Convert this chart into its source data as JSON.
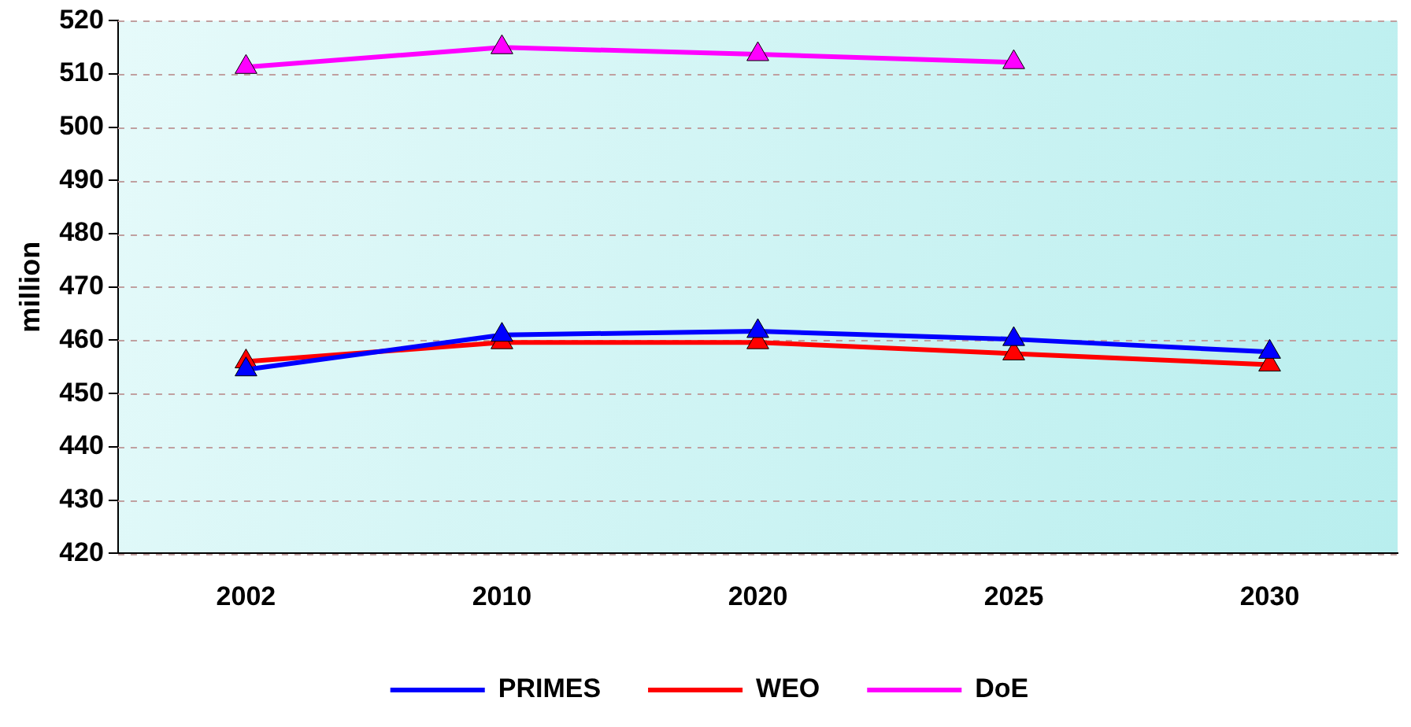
{
  "chart_data": {
    "type": "line",
    "ylabel": "million",
    "categories": [
      "2002",
      "2010",
      "2020",
      "2025",
      "2030"
    ],
    "series": [
      {
        "name": "PRIMES",
        "color": "#0000ff",
        "values": [
          454.5,
          461,
          461.7,
          460.2,
          457.8
        ]
      },
      {
        "name": "WEO",
        "color": "#ff0000",
        "values": [
          456,
          459.6,
          459.6,
          457.5,
          455.4
        ]
      },
      {
        "name": "DoE",
        "color": "#ff00ff",
        "values": [
          511.3,
          515,
          513.7,
          512.2,
          null
        ]
      }
    ],
    "ylim": [
      420,
      520
    ],
    "yticks": [
      420,
      430,
      440,
      450,
      460,
      470,
      480,
      490,
      500,
      510,
      520
    ],
    "grid": "y",
    "legend": "bottom",
    "marker": "triangle",
    "line_style": "solid"
  }
}
